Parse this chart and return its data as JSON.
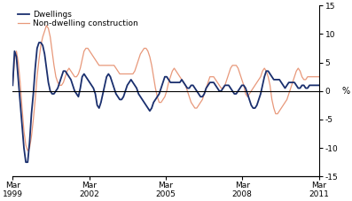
{
  "ylabel_right": "%",
  "ylim": [
    -15,
    15
  ],
  "yticks": [
    -15,
    -10,
    -5,
    0,
    5,
    10,
    15
  ],
  "legend_dwellings": "Dwellings",
  "legend_nondwelling": "Non-dwelling construction",
  "color_dwellings": "#1a2f6e",
  "color_nondwelling": "#e8987a",
  "x_tick_labels": [
    "Mar\n1999",
    "Mar\n2002",
    "Mar\n2005",
    "Mar\n2008",
    "Mar\n2011"
  ],
  "x_tick_positions": [
    0,
    12,
    24,
    36,
    48
  ],
  "dwellings": [
    1.0,
    7.0,
    6.0,
    2.0,
    -2.0,
    -6.0,
    -10.0,
    -12.5,
    -12.5,
    -9.0,
    -4.0,
    -0.5,
    4.0,
    7.5,
    8.5,
    8.5,
    8.0,
    6.5,
    4.0,
    1.5,
    0.0,
    -0.5,
    -0.5,
    0.0,
    0.5,
    1.5,
    2.5,
    3.5,
    3.5,
    3.0,
    2.5,
    2.0,
    1.0,
    0.0,
    -0.5,
    -1.0,
    0.5,
    2.5,
    3.0,
    2.5,
    2.0,
    1.5,
    1.0,
    0.5,
    -0.5,
    -2.5,
    -3.0,
    -2.0,
    -0.5,
    1.0,
    2.5,
    3.0,
    2.5,
    1.5,
    0.5,
    -0.5,
    -1.0,
    -1.5,
    -1.5,
    -1.0,
    0.0,
    1.0,
    1.5,
    2.0,
    1.5,
    1.0,
    0.5,
    -0.5,
    -1.0,
    -1.5,
    -2.0,
    -2.5,
    -3.0,
    -3.5,
    -3.0,
    -2.0,
    -1.5,
    -1.0,
    -0.5,
    0.5,
    1.5,
    2.5,
    2.5,
    2.0,
    1.5,
    1.5,
    1.5,
    1.5,
    1.5,
    1.5,
    2.0,
    1.5,
    1.0,
    0.5,
    0.5,
    1.0,
    1.0,
    0.5,
    0.0,
    -0.5,
    -1.0,
    -1.0,
    -0.5,
    0.5,
    1.0,
    1.5,
    1.5,
    1.5,
    1.0,
    0.5,
    0.0,
    0.0,
    0.5,
    1.0,
    1.0,
    1.0,
    0.5,
    0.0,
    -0.5,
    -0.5,
    0.0,
    0.5,
    1.0,
    1.0,
    0.5,
    -0.5,
    -1.5,
    -2.5,
    -3.0,
    -3.0,
    -2.5,
    -1.5,
    -0.5,
    1.0,
    2.5,
    3.5,
    3.5,
    3.0,
    2.5,
    2.0,
    2.0,
    2.0,
    2.0,
    1.5,
    1.0,
    0.5,
    1.0,
    1.5,
    1.5,
    1.5,
    1.5,
    1.0,
    0.5,
    0.5,
    1.0,
    1.0,
    0.5,
    0.5,
    1.0,
    1.0,
    1.0,
    1.0,
    1.0,
    1.0
  ],
  "nondwelling": [
    1.0,
    5.5,
    7.0,
    5.0,
    1.5,
    -3.0,
    -7.0,
    -9.5,
    -10.5,
    -10.0,
    -8.0,
    -5.0,
    -1.5,
    2.5,
    5.5,
    8.0,
    9.5,
    10.5,
    11.5,
    11.0,
    9.5,
    7.0,
    4.5,
    2.5,
    1.5,
    1.0,
    1.0,
    1.5,
    2.5,
    3.5,
    4.0,
    3.5,
    3.0,
    2.5,
    2.5,
    3.0,
    4.0,
    5.5,
    7.0,
    7.5,
    7.5,
    7.0,
    6.5,
    6.0,
    5.5,
    5.0,
    4.5,
    4.5,
    4.5,
    4.5,
    4.5,
    4.5,
    4.5,
    4.5,
    4.5,
    4.0,
    3.5,
    3.0,
    3.0,
    3.0,
    3.0,
    3.0,
    3.0,
    3.0,
    3.0,
    3.5,
    4.5,
    5.5,
    6.5,
    7.0,
    7.5,
    7.5,
    7.0,
    6.0,
    4.5,
    2.5,
    0.5,
    -1.0,
    -2.0,
    -2.0,
    -1.5,
    -1.0,
    0.0,
    1.5,
    2.5,
    3.5,
    4.0,
    3.5,
    3.0,
    2.5,
    2.0,
    1.5,
    1.0,
    0.0,
    -1.0,
    -2.0,
    -2.5,
    -3.0,
    -3.0,
    -2.5,
    -2.0,
    -1.5,
    -0.5,
    0.5,
    1.5,
    2.5,
    2.5,
    2.5,
    2.0,
    1.5,
    1.0,
    0.5,
    0.5,
    1.0,
    2.0,
    3.0,
    4.0,
    4.5,
    4.5,
    4.5,
    4.0,
    3.0,
    2.0,
    1.0,
    -0.5,
    -1.0,
    -0.5,
    0.0,
    0.5,
    1.0,
    1.5,
    2.0,
    2.5,
    3.5,
    4.0,
    3.5,
    2.5,
    1.0,
    -1.5,
    -3.0,
    -4.0,
    -4.0,
    -3.5,
    -3.0,
    -2.5,
    -2.0,
    -1.5,
    -0.5,
    0.5,
    1.5,
    2.5,
    3.5,
    4.0,
    3.5,
    2.5,
    2.0,
    2.0,
    2.5,
    2.5,
    2.5,
    2.5,
    2.5,
    2.5,
    2.5
  ]
}
